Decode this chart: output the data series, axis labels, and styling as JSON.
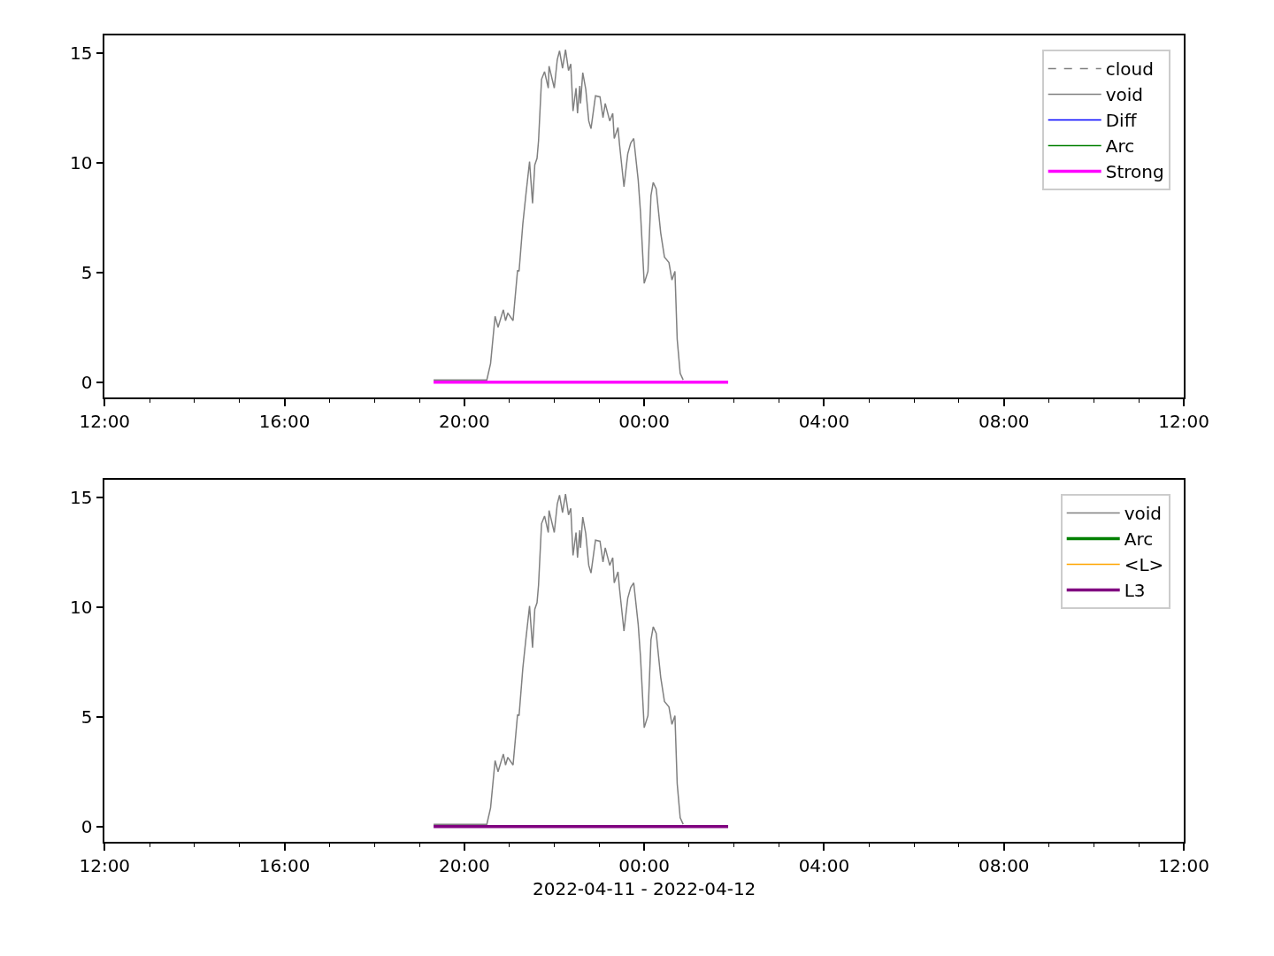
{
  "chart_data": [
    {
      "type": "line",
      "xlim": [
        "2022-04-11T12:00",
        "2022-04-12T12:00"
      ],
      "ylim": [
        -0.7,
        15.8
      ],
      "yticks": [
        0,
        5,
        10,
        15
      ],
      "xticks": [
        {
          "value": "2022-04-11T12:00",
          "label": "12:00"
        },
        {
          "value": "2022-04-11T13:00",
          "label": null
        },
        {
          "value": "2022-04-11T14:00",
          "label": null
        },
        {
          "value": "2022-04-11T15:00",
          "label": null
        },
        {
          "value": "2022-04-11T16:00",
          "label": "16:00"
        },
        {
          "value": "2022-04-11T17:00",
          "label": null
        },
        {
          "value": "2022-04-11T18:00",
          "label": null
        },
        {
          "value": "2022-04-11T19:00",
          "label": null
        },
        {
          "value": "2022-04-11T20:00",
          "label": "20:00"
        },
        {
          "value": "2022-04-11T21:00",
          "label": null
        },
        {
          "value": "2022-04-11T22:00",
          "label": null
        },
        {
          "value": "2022-04-11T23:00",
          "label": null
        },
        {
          "value": "2022-04-12T00:00",
          "label": "00:00"
        },
        {
          "value": "2022-04-12T01:00",
          "label": null
        },
        {
          "value": "2022-04-12T02:00",
          "label": null
        },
        {
          "value": "2022-04-12T03:00",
          "label": null
        },
        {
          "value": "2022-04-12T04:00",
          "label": "04:00"
        },
        {
          "value": "2022-04-12T05:00",
          "label": null
        },
        {
          "value": "2022-04-12T06:00",
          "label": null
        },
        {
          "value": "2022-04-12T07:00",
          "label": null
        },
        {
          "value": "2022-04-12T08:00",
          "label": "08:00"
        },
        {
          "value": "2022-04-12T09:00",
          "label": null
        },
        {
          "value": "2022-04-12T10:00",
          "label": null
        },
        {
          "value": "2022-04-12T11:00",
          "label": null
        },
        {
          "value": "2022-04-12T12:00",
          "label": "12:00"
        }
      ],
      "legend": "top right",
      "marker": "none",
      "series": [
        {
          "name": "cloud",
          "color": "#808080",
          "line_style": "dashed"
        },
        {
          "name": "void",
          "color": "#808080",
          "line_style": "solid",
          "x": [
            "2022-04-11T19:19",
            "2022-04-11T20:30",
            "2022-04-11T20:35",
            "2022-04-11T20:41",
            "2022-04-11T20:45",
            "2022-04-11T20:52",
            "2022-04-11T20:55",
            "2022-04-11T20:58",
            "2022-04-11T21:05",
            "2022-04-11T21:11",
            "2022-04-11T21:13",
            "2022-04-11T21:18",
            "2022-04-11T21:22",
            "2022-04-11T21:27",
            "2022-04-11T21:31",
            "2022-04-11T21:34",
            "2022-04-11T21:37",
            "2022-04-11T21:39",
            "2022-04-11T21:43",
            "2022-04-11T21:47",
            "2022-04-11T21:52",
            "2022-04-11T21:53",
            "2022-04-11T22:00",
            "2022-04-11T22:04",
            "2022-04-11T22:07",
            "2022-04-11T22:11",
            "2022-04-11T22:15",
            "2022-04-11T22:19",
            "2022-04-11T22:22",
            "2022-04-11T22:25",
            "2022-04-11T22:29",
            "2022-04-11T22:31",
            "2022-04-11T22:34",
            "2022-04-11T22:35",
            "2022-04-11T22:38",
            "2022-04-11T22:42",
            "2022-04-11T22:46",
            "2022-04-11T22:49",
            "2022-04-11T22:55",
            "2022-04-11T23:01",
            "2022-04-11T23:05",
            "2022-04-11T23:08",
            "2022-04-11T23:14",
            "2022-04-11T23:18",
            "2022-04-11T23:20",
            "2022-04-11T23:25",
            "2022-04-11T23:27",
            "2022-04-11T23:33",
            "2022-04-11T23:38",
            "2022-04-11T23:42",
            "2022-04-11T23:46",
            "2022-04-11T23:52",
            "2022-04-11T23:55",
            "2022-04-12T00:00",
            "2022-04-12T00:05",
            "2022-04-12T00:09",
            "2022-04-12T00:12",
            "2022-04-12T00:16",
            "2022-04-12T00:22",
            "2022-04-12T00:27",
            "2022-04-12T00:33",
            "2022-04-12T00:37",
            "2022-04-12T00:41",
            "2022-04-12T00:44",
            "2022-04-12T00:48",
            "2022-04-12T00:52"
          ],
          "values": [
            0.1,
            0.1,
            0.85,
            3.0,
            2.5,
            3.3,
            2.8,
            3.15,
            2.8,
            5.1,
            5.05,
            7.2,
            8.5,
            10.05,
            8.15,
            9.9,
            10.2,
            11.0,
            13.8,
            14.15,
            13.4,
            14.4,
            13.4,
            14.7,
            15.1,
            14.3,
            15.15,
            14.2,
            14.5,
            12.35,
            13.4,
            12.25,
            13.5,
            12.7,
            14.1,
            13.35,
            11.9,
            11.55,
            13.05,
            13.0,
            12.05,
            12.7,
            11.9,
            12.25,
            11.1,
            11.6,
            10.85,
            8.9,
            10.4,
            10.9,
            11.1,
            9.2,
            7.75,
            4.5,
            5.05,
            8.5,
            9.1,
            8.8,
            6.8,
            5.7,
            5.45,
            4.65,
            5.05,
            1.95,
            0.4,
            0.1
          ]
        },
        {
          "name": "Diff",
          "color": "#0000ff",
          "line_style": "solid"
        },
        {
          "name": "Arc",
          "color": "#008000",
          "line_style": "solid"
        },
        {
          "name": "Strong",
          "color": "#ff00ff",
          "line_style": "solid",
          "x": [
            "2022-04-11T19:19",
            "2022-04-12T01:52"
          ],
          "values": [
            0,
            0
          ]
        }
      ]
    },
    {
      "type": "line",
      "xlabel": "2022-04-11 - 2022-04-12",
      "xlim": [
        "2022-04-11T12:00",
        "2022-04-12T12:00"
      ],
      "ylim": [
        -0.7,
        15.8
      ],
      "yticks": [
        0,
        5,
        10,
        15
      ],
      "xticks": [
        {
          "value": "2022-04-11T12:00",
          "label": "12:00"
        },
        {
          "value": "2022-04-11T13:00",
          "label": null
        },
        {
          "value": "2022-04-11T14:00",
          "label": null
        },
        {
          "value": "2022-04-11T15:00",
          "label": null
        },
        {
          "value": "2022-04-11T16:00",
          "label": "16:00"
        },
        {
          "value": "2022-04-11T17:00",
          "label": null
        },
        {
          "value": "2022-04-11T18:00",
          "label": null
        },
        {
          "value": "2022-04-11T19:00",
          "label": null
        },
        {
          "value": "2022-04-11T20:00",
          "label": "20:00"
        },
        {
          "value": "2022-04-11T21:00",
          "label": null
        },
        {
          "value": "2022-04-11T22:00",
          "label": null
        },
        {
          "value": "2022-04-11T23:00",
          "label": null
        },
        {
          "value": "2022-04-12T00:00",
          "label": "00:00"
        },
        {
          "value": "2022-04-12T01:00",
          "label": null
        },
        {
          "value": "2022-04-12T02:00",
          "label": null
        },
        {
          "value": "2022-04-12T03:00",
          "label": null
        },
        {
          "value": "2022-04-12T04:00",
          "label": "04:00"
        },
        {
          "value": "2022-04-12T05:00",
          "label": null
        },
        {
          "value": "2022-04-12T06:00",
          "label": null
        },
        {
          "value": "2022-04-12T07:00",
          "label": null
        },
        {
          "value": "2022-04-12T08:00",
          "label": "08:00"
        },
        {
          "value": "2022-04-12T09:00",
          "label": null
        },
        {
          "value": "2022-04-12T10:00",
          "label": null
        },
        {
          "value": "2022-04-12T11:00",
          "label": null
        },
        {
          "value": "2022-04-12T12:00",
          "label": "12:00"
        }
      ],
      "legend": "top right",
      "marker": "none",
      "series": [
        {
          "name": "void",
          "color": "#808080",
          "line_style": "solid",
          "x": [
            "2022-04-11T19:19",
            "2022-04-11T20:30",
            "2022-04-11T20:35",
            "2022-04-11T20:41",
            "2022-04-11T20:45",
            "2022-04-11T20:52",
            "2022-04-11T20:55",
            "2022-04-11T20:58",
            "2022-04-11T21:05",
            "2022-04-11T21:11",
            "2022-04-11T21:13",
            "2022-04-11T21:18",
            "2022-04-11T21:22",
            "2022-04-11T21:27",
            "2022-04-11T21:31",
            "2022-04-11T21:34",
            "2022-04-11T21:37",
            "2022-04-11T21:39",
            "2022-04-11T21:43",
            "2022-04-11T21:47",
            "2022-04-11T21:52",
            "2022-04-11T21:53",
            "2022-04-11T22:00",
            "2022-04-11T22:04",
            "2022-04-11T22:07",
            "2022-04-11T22:11",
            "2022-04-11T22:15",
            "2022-04-11T22:19",
            "2022-04-11T22:22",
            "2022-04-11T22:25",
            "2022-04-11T22:29",
            "2022-04-11T22:31",
            "2022-04-11T22:34",
            "2022-04-11T22:35",
            "2022-04-11T22:38",
            "2022-04-11T22:42",
            "2022-04-11T22:46",
            "2022-04-11T22:49",
            "2022-04-11T22:55",
            "2022-04-11T23:01",
            "2022-04-11T23:05",
            "2022-04-11T23:08",
            "2022-04-11T23:14",
            "2022-04-11T23:18",
            "2022-04-11T23:20",
            "2022-04-11T23:25",
            "2022-04-11T23:27",
            "2022-04-11T23:33",
            "2022-04-11T23:38",
            "2022-04-11T23:42",
            "2022-04-11T23:46",
            "2022-04-11T23:52",
            "2022-04-11T23:55",
            "2022-04-12T00:00",
            "2022-04-12T00:05",
            "2022-04-12T00:09",
            "2022-04-12T00:12",
            "2022-04-12T00:16",
            "2022-04-12T00:22",
            "2022-04-12T00:27",
            "2022-04-12T00:33",
            "2022-04-12T00:37",
            "2022-04-12T00:41",
            "2022-04-12T00:44",
            "2022-04-12T00:48",
            "2022-04-12T00:52"
          ],
          "values": [
            0.1,
            0.1,
            0.85,
            3.0,
            2.5,
            3.3,
            2.8,
            3.15,
            2.8,
            5.1,
            5.05,
            7.2,
            8.5,
            10.05,
            8.15,
            9.9,
            10.2,
            11.0,
            13.8,
            14.15,
            13.4,
            14.4,
            13.4,
            14.7,
            15.1,
            14.3,
            15.15,
            14.2,
            14.5,
            12.35,
            13.4,
            12.25,
            13.5,
            12.7,
            14.1,
            13.35,
            11.9,
            11.55,
            13.05,
            13.0,
            12.05,
            12.7,
            11.9,
            12.25,
            11.1,
            11.6,
            10.85,
            8.9,
            10.4,
            10.9,
            11.1,
            9.2,
            7.75,
            4.5,
            5.05,
            8.5,
            9.1,
            8.8,
            6.8,
            5.7,
            5.45,
            4.65,
            5.05,
            1.95,
            0.4,
            0.1
          ]
        },
        {
          "name": "Arc",
          "color": "#008000",
          "line_style": "solid"
        },
        {
          "name": "<L>",
          "color": "#ffa500",
          "line_style": "solid"
        },
        {
          "name": "L3",
          "color": "#800080",
          "line_style": "solid",
          "x": [
            "2022-04-11T19:19",
            "2022-04-12T01:52"
          ],
          "values": [
            0,
            0
          ]
        }
      ]
    }
  ]
}
